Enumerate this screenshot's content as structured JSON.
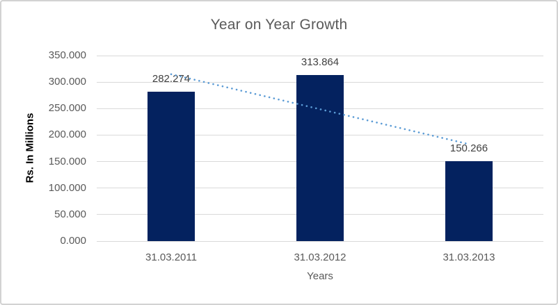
{
  "chart_data": {
    "type": "bar",
    "title": "Year on Year Growth",
    "xlabel": "Years",
    "ylabel": "Rs. In Millions",
    "categories": [
      "31.03.2011",
      "31.03.2012",
      "31.03.2013"
    ],
    "values": [
      282.274,
      313.864,
      150.266
    ],
    "data_labels": [
      "282.274",
      "313.864",
      "150.266"
    ],
    "ylim": [
      0,
      350
    ],
    "yticks": [
      {
        "value": 0,
        "label": "0.000"
      },
      {
        "value": 50,
        "label": "50.000"
      },
      {
        "value": 100,
        "label": "100.000"
      },
      {
        "value": 150,
        "label": "150.000"
      },
      {
        "value": 200,
        "label": "200.000"
      },
      {
        "value": 250,
        "label": "250.000"
      },
      {
        "value": 300,
        "label": "300.000"
      },
      {
        "value": 350,
        "label": "350.000"
      }
    ],
    "grid": true,
    "legend": "none",
    "bar_color": "#04225f",
    "trendline": {
      "type": "linear",
      "style": "dotted",
      "color": "#5b9bd5",
      "start_value": 314.8,
      "end_value": 182.8
    },
    "colors": {
      "title": "#595959",
      "tick_labels": "#595959",
      "data_labels": "#404040",
      "gridline": "#d9d9d9",
      "x_axis_title": "#595959",
      "y_axis_title": "#000000",
      "frame_border": "#d2d2d2",
      "background": "#ffffff"
    }
  }
}
